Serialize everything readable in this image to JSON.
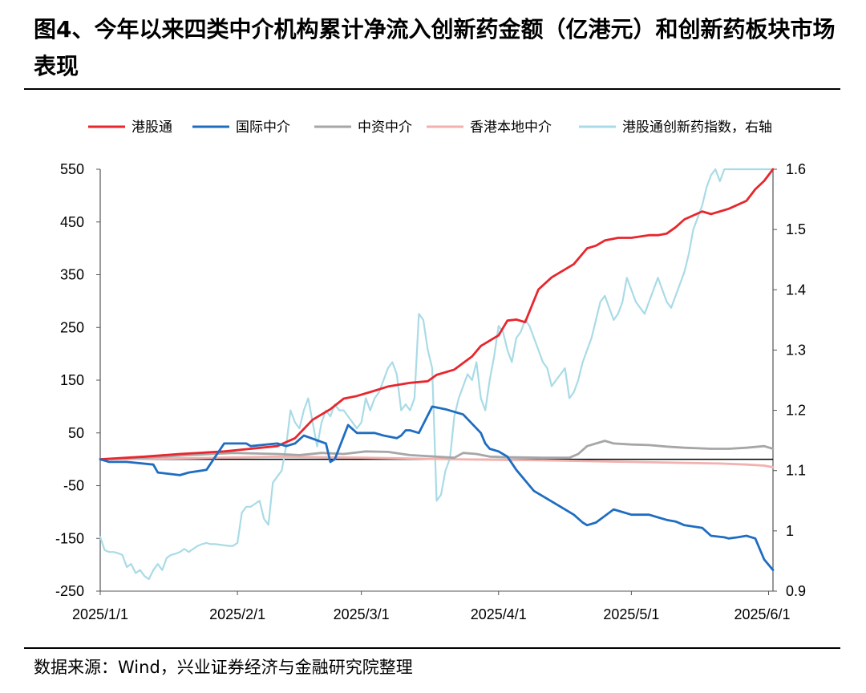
{
  "title": "图4、今年以来四类中介机构累计净流入创新药金额（亿港元）和创新药板块市场表现",
  "source": "数据来源：Wind，兴业证券经济与金融研究院整理",
  "chart_data": {
    "type": "line",
    "title": "",
    "xlabel": "",
    "ylabel": "",
    "y_left_ticks": [
      550,
      450,
      350,
      250,
      150,
      50,
      -50,
      -150,
      -250
    ],
    "y_left_lim": [
      -250,
      550
    ],
    "y_right_ticks": [
      1.6,
      1.5,
      1.4,
      1.3,
      1.2,
      1.1,
      1,
      0.9
    ],
    "y_right_lim": [
      0.9,
      1.6
    ],
    "x_ticks": [
      "2025/1/1",
      "2025/2/1",
      "2025/3/1",
      "2025/4/1",
      "2025/5/1",
      "2025/6/1"
    ],
    "x_tick_days": [
      0,
      31,
      59,
      90,
      120,
      151
    ],
    "x_lim_days": [
      0,
      152
    ],
    "grid": false,
    "legend_position": "top",
    "series": [
      {
        "name": "港股通",
        "axis": "left",
        "color": "#e8262d",
        "x": [
          0,
          10,
          18,
          28,
          34,
          40,
          44,
          48,
          52,
          55,
          58,
          62,
          65,
          70,
          74,
          76,
          80,
          84,
          86,
          90,
          92,
          94,
          96,
          99,
          102,
          104,
          107,
          110,
          112,
          114,
          117,
          120,
          124,
          126,
          128,
          130,
          132,
          136,
          138,
          140,
          142,
          146,
          148,
          150,
          152
        ],
        "y": [
          0,
          5,
          10,
          15,
          20,
          25,
          40,
          75,
          95,
          115,
          120,
          130,
          138,
          145,
          148,
          160,
          170,
          195,
          215,
          235,
          263,
          265,
          260,
          322,
          345,
          355,
          370,
          400,
          405,
          415,
          420,
          420,
          425,
          425,
          428,
          440,
          455,
          470,
          465,
          470,
          475,
          490,
          512,
          528,
          550
        ]
      },
      {
        "name": "国际中介",
        "axis": "left",
        "color": "#1f6dc1",
        "x": [
          0,
          2,
          6,
          12,
          13,
          18,
          20,
          24,
          28,
          33,
          34,
          40,
          42,
          44,
          46,
          51,
          52,
          53,
          56,
          58,
          62,
          64,
          67,
          68,
          69,
          70,
          72,
          75,
          78,
          82,
          86,
          87,
          88,
          90,
          92,
          94,
          98,
          101,
          104,
          107,
          109,
          110,
          112,
          116,
          118,
          120,
          124,
          126,
          128,
          130,
          132,
          136,
          138,
          141,
          142,
          144,
          146,
          148,
          150,
          152
        ],
        "y": [
          0,
          -5,
          -5,
          -10,
          -25,
          -30,
          -25,
          -20,
          30,
          30,
          25,
          30,
          25,
          30,
          45,
          30,
          -5,
          0,
          65,
          50,
          50,
          45,
          40,
          45,
          55,
          55,
          50,
          100,
          95,
          85,
          50,
          30,
          20,
          15,
          5,
          -20,
          -60,
          -75,
          -90,
          -105,
          -120,
          -125,
          -120,
          -95,
          -100,
          -105,
          -105,
          -110,
          -115,
          -118,
          -125,
          -130,
          -145,
          -148,
          -150,
          -148,
          -145,
          -150,
          -190,
          -210
        ]
      },
      {
        "name": "中资中介",
        "axis": "left",
        "color": "#a6a6a6",
        "x": [
          0,
          10,
          20,
          30,
          40,
          45,
          50,
          55,
          60,
          65,
          70,
          80,
          82,
          85,
          88,
          92,
          100,
          106,
          108,
          110,
          114,
          116,
          120,
          124,
          128,
          132,
          138,
          142,
          146,
          150,
          152
        ],
        "y": [
          0,
          3,
          8,
          12,
          10,
          8,
          12,
          10,
          15,
          14,
          8,
          3,
          12,
          10,
          5,
          4,
          3,
          3,
          10,
          25,
          35,
          30,
          28,
          27,
          24,
          22,
          20,
          20,
          22,
          25,
          20
        ]
      },
      {
        "name": "香港本地中介",
        "axis": "left",
        "color": "#f2b1ae",
        "x": [
          0,
          20,
          40,
          60,
          80,
          100,
          120,
          140,
          146,
          150,
          152
        ],
        "y": [
          0,
          2,
          5,
          3,
          0,
          -2,
          -5,
          -8,
          -10,
          -12,
          -15
        ]
      },
      {
        "name": "港股通创新药指数，右轴",
        "axis": "right",
        "color": "#a9dbe6",
        "x": [
          0,
          1,
          2,
          3,
          4,
          5,
          6,
          7,
          8,
          9,
          10,
          11,
          12,
          13,
          14,
          15,
          16,
          17,
          18,
          19,
          20,
          21,
          22,
          23,
          24,
          25,
          26,
          27,
          28,
          29,
          30,
          31,
          32,
          33,
          34,
          35,
          36,
          37,
          38,
          39,
          40,
          41,
          42,
          43,
          44,
          45,
          46,
          47,
          48,
          49,
          50,
          51,
          52,
          53,
          54,
          55,
          56,
          57,
          58,
          59,
          60,
          61,
          62,
          63,
          64,
          65,
          66,
          67,
          68,
          69,
          70,
          71,
          72,
          73,
          74,
          75,
          76,
          77,
          78,
          79,
          80,
          81,
          82,
          83,
          84,
          85,
          86,
          87,
          88,
          89,
          90,
          91,
          92,
          93,
          94,
          95,
          96,
          97,
          98,
          99,
          100,
          101,
          102,
          103,
          104,
          105,
          106,
          107,
          108,
          109,
          110,
          111,
          112,
          113,
          114,
          115,
          116,
          117,
          118,
          119,
          120,
          121,
          122,
          123,
          124,
          125,
          126,
          127,
          128,
          129,
          130,
          131,
          132,
          133,
          134,
          135,
          136,
          137,
          138,
          139,
          140,
          141,
          142,
          143,
          144,
          145,
          146,
          147,
          148,
          149,
          150,
          151,
          152
        ],
        "y": [
          0.99,
          0.968,
          0.965,
          0.965,
          0.963,
          0.96,
          0.94,
          0.945,
          0.93,
          0.935,
          0.925,
          0.92,
          0.935,
          0.945,
          0.935,
          0.955,
          0.96,
          0.962,
          0.965,
          0.97,
          0.965,
          0.97,
          0.975,
          0.978,
          0.98,
          0.978,
          0.978,
          0.977,
          0.976,
          0.975,
          0.975,
          0.98,
          1.03,
          1.04,
          1.04,
          1.045,
          1.05,
          1.02,
          1.01,
          1.08,
          1.09,
          1.1,
          1.14,
          1.2,
          1.18,
          1.17,
          1.2,
          1.22,
          1.18,
          1.14,
          1.18,
          1.2,
          1.19,
          1.21,
          1.2,
          1.2,
          1.19,
          1.18,
          1.17,
          1.18,
          1.22,
          1.2,
          1.22,
          1.23,
          1.25,
          1.27,
          1.28,
          1.26,
          1.2,
          1.21,
          1.2,
          1.22,
          1.36,
          1.35,
          1.3,
          1.27,
          1.05,
          1.06,
          1.1,
          1.12,
          1.19,
          1.22,
          1.24,
          1.26,
          1.25,
          1.28,
          1.22,
          1.2,
          1.25,
          1.29,
          1.34,
          1.33,
          1.3,
          1.28,
          1.32,
          1.33,
          1.35,
          1.34,
          1.32,
          1.3,
          1.28,
          1.27,
          1.24,
          1.25,
          1.26,
          1.27,
          1.22,
          1.23,
          1.25,
          1.28,
          1.3,
          1.32,
          1.35,
          1.38,
          1.39,
          1.37,
          1.35,
          1.36,
          1.38,
          1.42,
          1.4,
          1.38,
          1.37,
          1.36,
          1.38,
          1.4,
          1.42,
          1.4,
          1.38,
          1.37,
          1.39,
          1.41,
          1.43,
          1.46,
          1.5,
          1.52,
          1.54,
          1.57,
          1.59,
          1.6,
          1.58,
          1.6,
          1.6,
          1.6,
          1.6,
          1.6,
          1.6,
          1.6,
          1.6,
          1.6,
          1.6,
          1.6,
          1.6
        ]
      }
    ]
  }
}
